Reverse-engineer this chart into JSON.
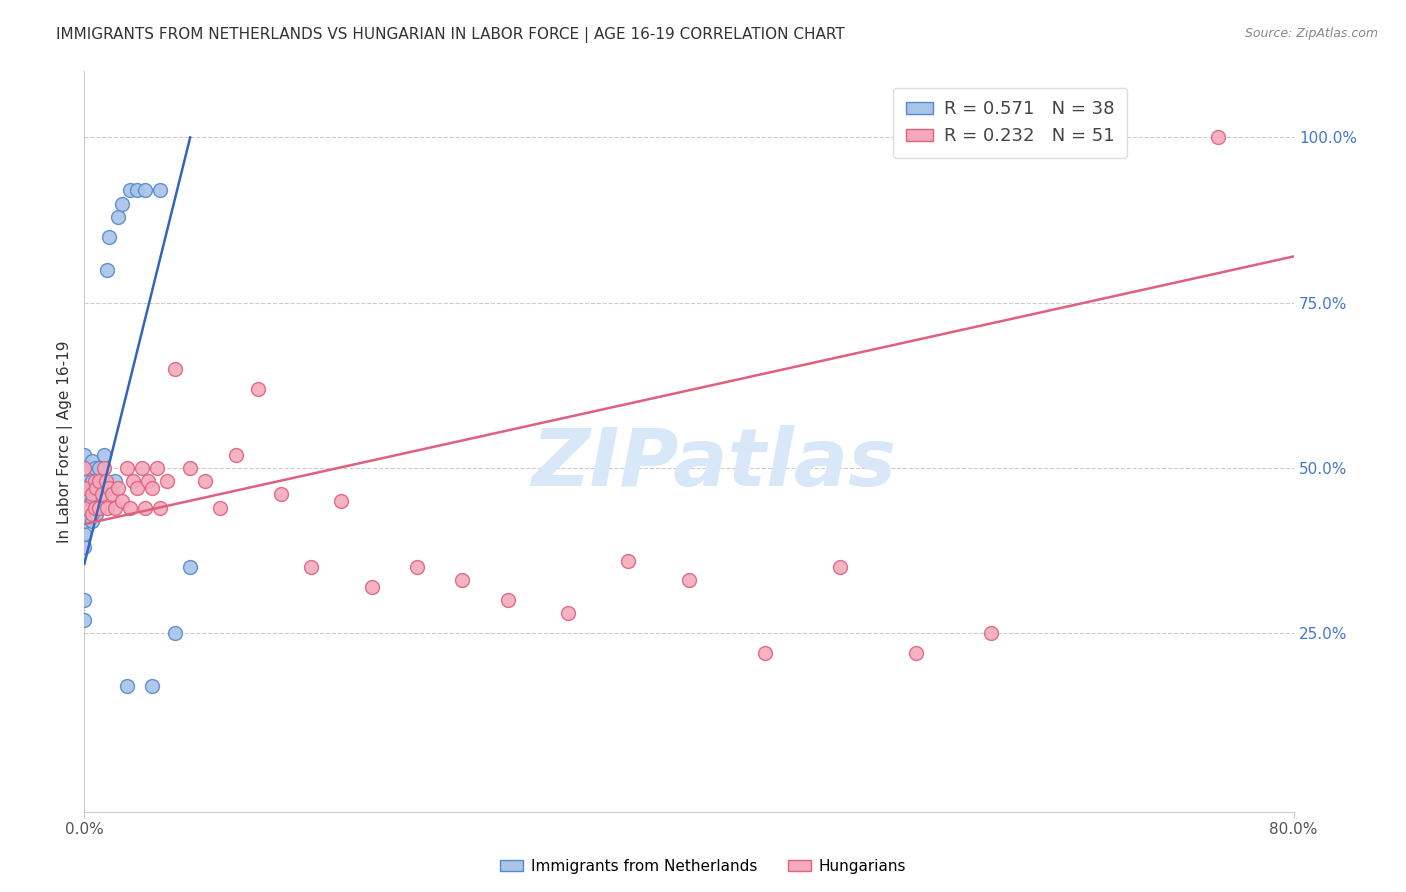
{
  "title": "IMMIGRANTS FROM NETHERLANDS VS HUNGARIAN IN LABOR FORCE | AGE 16-19 CORRELATION CHART",
  "source": "Source: ZipAtlas.com",
  "ylabel": "In Labor Force | Age 16-19",
  "xlim": [
    0.0,
    0.8
  ],
  "ylim": [
    -0.02,
    1.1
  ],
  "yticks_right": [
    0.25,
    0.5,
    0.75,
    1.0
  ],
  "ytick_right_labels": [
    "25.0%",
    "50.0%",
    "75.0%",
    "100.0%"
  ],
  "legend_label1": "Immigrants from Netherlands",
  "legend_label2": "Hungarians",
  "legend_R1": "0.571",
  "legend_N1": "38",
  "legend_R2": "0.232",
  "legend_N2": "51",
  "blue_fill": "#A8C4E8",
  "blue_edge": "#5588CC",
  "pink_fill": "#F4AABB",
  "pink_edge": "#E06080",
  "blue_line": "#3366BB",
  "pink_line": "#E06080",
  "wm_color": "#D8E8F8",
  "blue_points_x": [
    0.0,
    0.0,
    0.0,
    0.0,
    0.0,
    0.0,
    0.0,
    0.0,
    0.0,
    0.0,
    0.005,
    0.005,
    0.005,
    0.005,
    0.007,
    0.007,
    0.007,
    0.008,
    0.008,
    0.01,
    0.01,
    0.01,
    0.012,
    0.013,
    0.015,
    0.015,
    0.016,
    0.02,
    0.022,
    0.025,
    0.028,
    0.03,
    0.035,
    0.04,
    0.045,
    0.05,
    0.06,
    0.07
  ],
  "blue_points_y": [
    0.38,
    0.4,
    0.42,
    0.44,
    0.46,
    0.48,
    0.5,
    0.52,
    0.3,
    0.27,
    0.42,
    0.45,
    0.48,
    0.51,
    0.44,
    0.47,
    0.5,
    0.43,
    0.46,
    0.44,
    0.47,
    0.5,
    0.48,
    0.52,
    0.47,
    0.8,
    0.85,
    0.48,
    0.88,
    0.9,
    0.17,
    0.92,
    0.92,
    0.92,
    0.17,
    0.92,
    0.25,
    0.35
  ],
  "pink_points_x": [
    0.0,
    0.0,
    0.0,
    0.005,
    0.005,
    0.007,
    0.007,
    0.008,
    0.01,
    0.01,
    0.012,
    0.013,
    0.014,
    0.015,
    0.016,
    0.018,
    0.02,
    0.022,
    0.025,
    0.028,
    0.03,
    0.032,
    0.035,
    0.038,
    0.04,
    0.042,
    0.045,
    0.048,
    0.05,
    0.055,
    0.06,
    0.07,
    0.08,
    0.09,
    0.1,
    0.115,
    0.13,
    0.15,
    0.17,
    0.19,
    0.22,
    0.25,
    0.28,
    0.32,
    0.36,
    0.4,
    0.45,
    0.5,
    0.55,
    0.6,
    0.75
  ],
  "pink_points_y": [
    0.44,
    0.47,
    0.5,
    0.43,
    0.46,
    0.44,
    0.48,
    0.47,
    0.44,
    0.48,
    0.46,
    0.5,
    0.48,
    0.44,
    0.47,
    0.46,
    0.44,
    0.47,
    0.45,
    0.5,
    0.44,
    0.48,
    0.47,
    0.5,
    0.44,
    0.48,
    0.47,
    0.5,
    0.44,
    0.48,
    0.65,
    0.5,
    0.48,
    0.44,
    0.52,
    0.62,
    0.46,
    0.35,
    0.45,
    0.32,
    0.35,
    0.33,
    0.3,
    0.28,
    0.36,
    0.33,
    0.22,
    0.35,
    0.22,
    0.25,
    1.0
  ],
  "blue_trend_x": [
    0.0,
    0.07
  ],
  "blue_trend_y": [
    0.355,
    1.0
  ],
  "pink_trend_x": [
    0.0,
    0.8
  ],
  "pink_trend_y": [
    0.415,
    0.82
  ]
}
